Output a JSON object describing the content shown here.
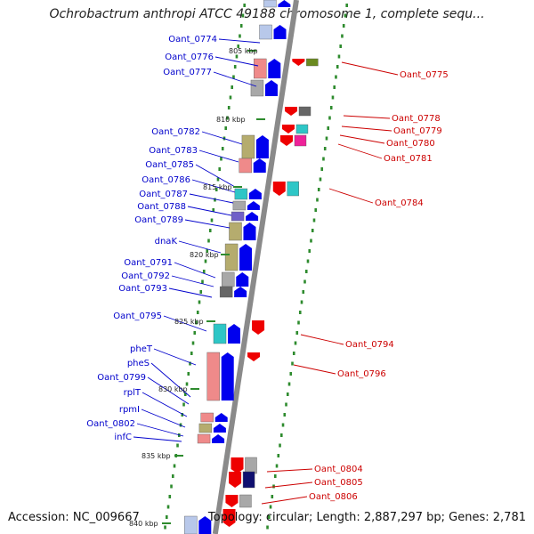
{
  "title": "Ochrobactrum anthropi ATCC 49188 chromosome 1, complete sequ...",
  "accession": "Accession: NC_009667",
  "summary": "Topology: circular; Length: 2,887,297 bp; Genes: 2,781",
  "colors": {
    "backbone": "#8a8a8a",
    "plus_label": "#0000cc",
    "minus_label": "#cc0000",
    "gc_dot": "#2e8b2e",
    "gene_blue": "#0000ee",
    "gene_red": "#ee0000",
    "olive": "#b5ac6e",
    "pink": "#ef8a8a",
    "cyan": "#2ec6c6",
    "gray": "#a8a8a8",
    "purple": "#7060c8",
    "navy": "#101070",
    "magenta": "#ee2299",
    "darkgray": "#666666",
    "lightblue": "#b8c8ea"
  },
  "kbp_marks": [
    "805 kbp",
    "810 kbp",
    "815 kbp",
    "820 kbp",
    "825 kbp",
    "830 kbp",
    "835 kbp",
    "840 kbp"
  ],
  "plus_genes": [
    "Oant_0774",
    "Oant_0776",
    "Oant_0777",
    "Oant_0782",
    "Oant_0783",
    "Oant_0785",
    "Oant_0786",
    "Oant_0787",
    "Oant_0788",
    "Oant_0789",
    "dnaK",
    "Oant_0791",
    "Oant_0792",
    "Oant_0793",
    "Oant_0795",
    "pheT",
    "pheS",
    "Oant_0799",
    "rplT",
    "rpmI",
    "Oant_0802",
    "infC"
  ],
  "minus_genes": [
    "Oant_0775",
    "Oant_0778",
    "Oant_0779",
    "Oant_0780",
    "Oant_0781",
    "Oant_0784",
    "Oant_0794",
    "Oant_0796",
    "Oant_0804",
    "Oant_0805",
    "Oant_0806"
  ]
}
